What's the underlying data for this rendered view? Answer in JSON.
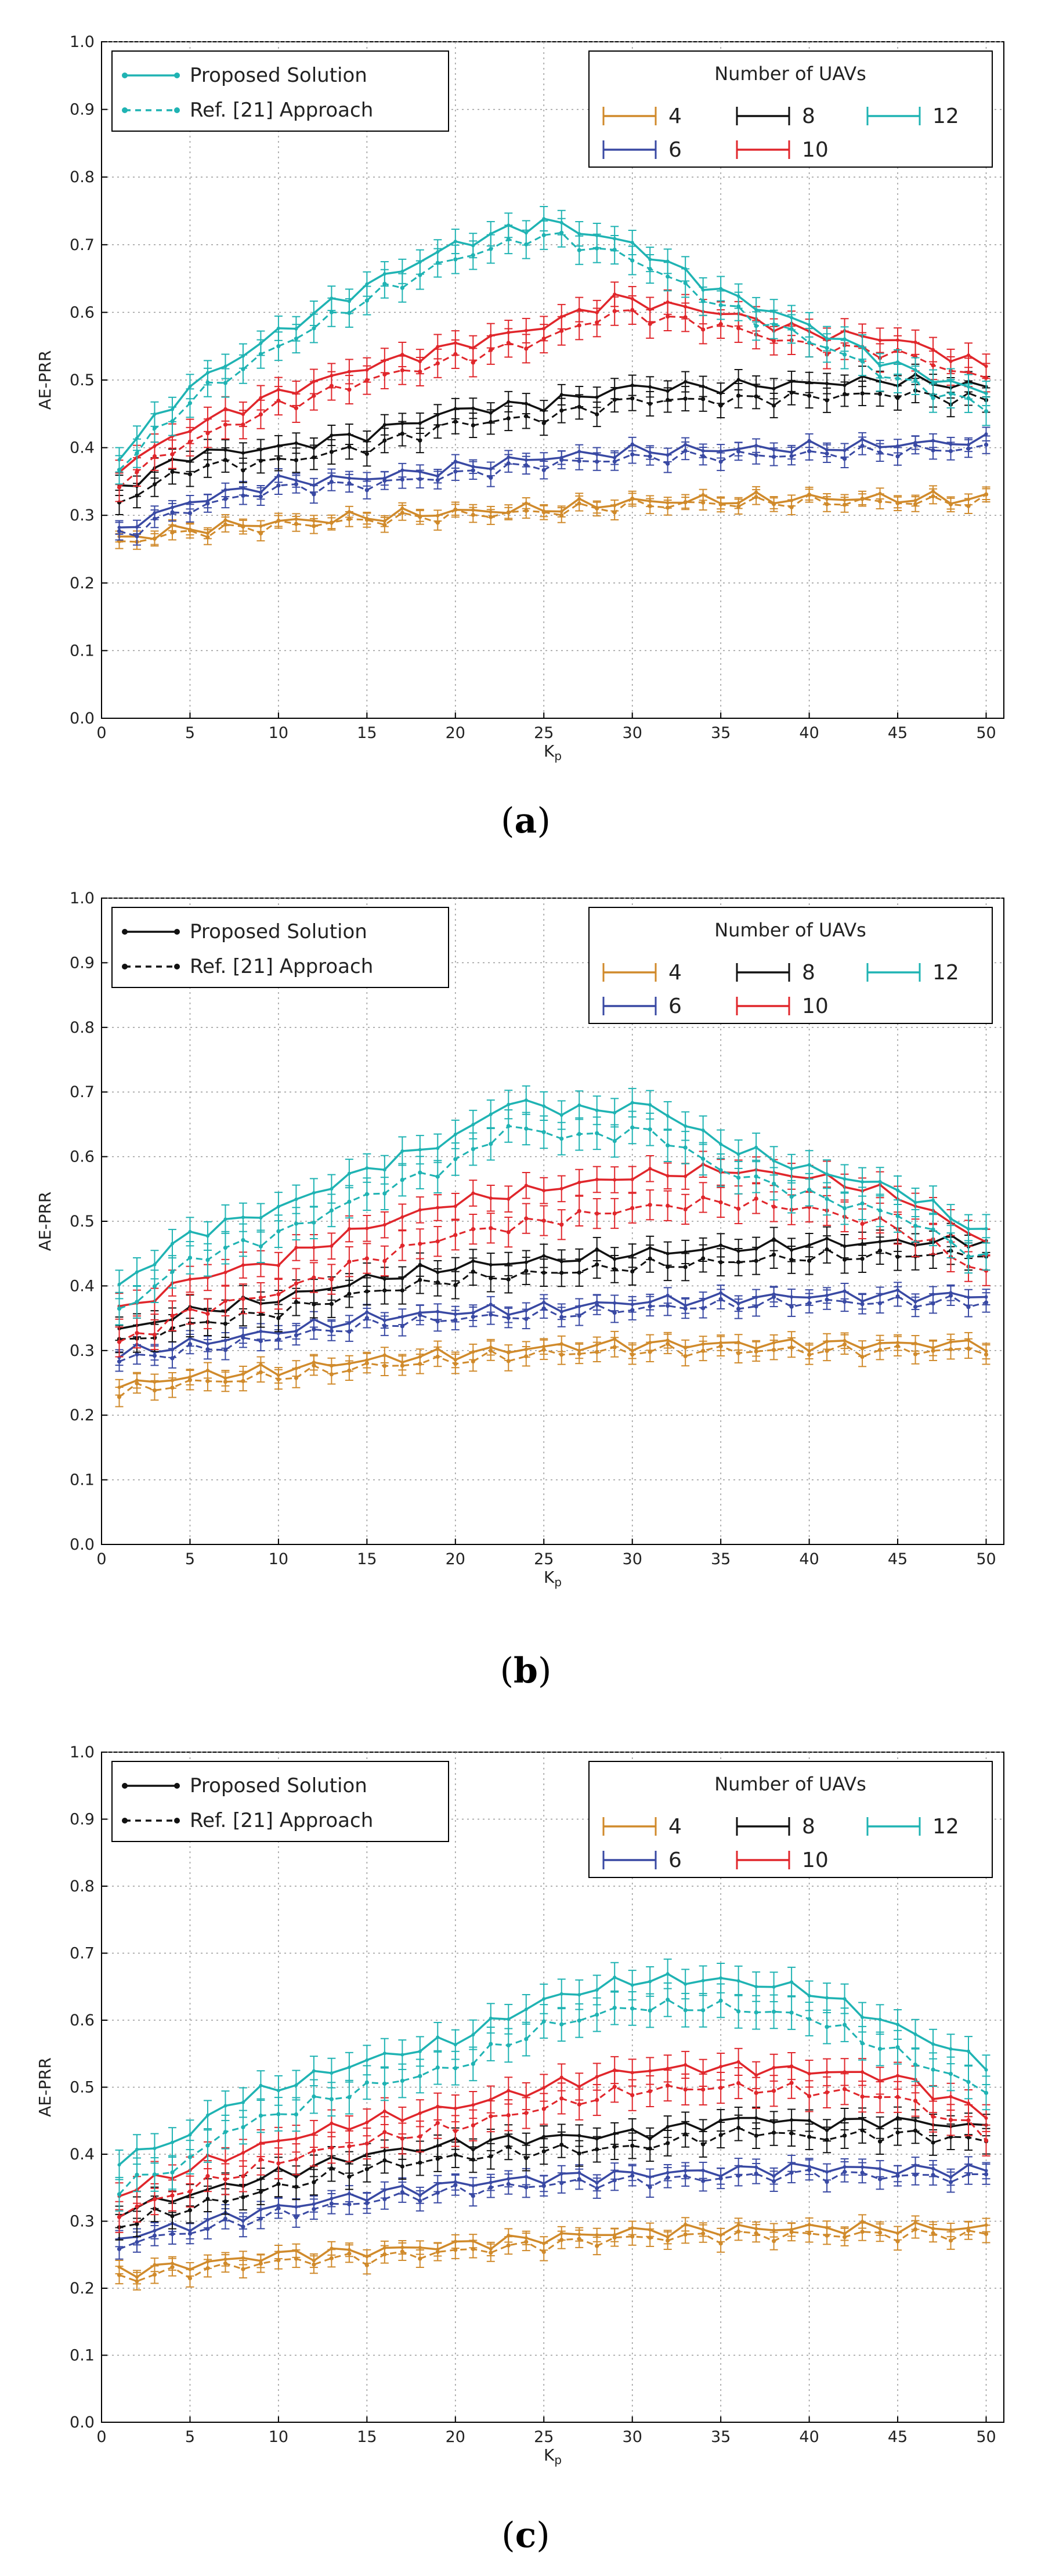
{
  "figure": {
    "panels": [
      "(a)",
      "(b)",
      "(c)"
    ]
  },
  "legend": {
    "proposed": "Proposed Solution",
    "reference": "Ref. [21] Approach",
    "uav_title": "Number of UAVs",
    "uav_counts": [
      "4",
      "6",
      "8",
      "10",
      "12"
    ]
  },
  "colors": {
    "4": "#d08a2b",
    "6": "#3949a3",
    "8": "#111111",
    "10": "#e0262b",
    "12": "#1fb3b3"
  },
  "chart_data": [
    {
      "type": "line",
      "panel": "(a)",
      "xlabel": "Kp",
      "ylabel": "AE-PRR",
      "xlim": [
        0,
        51
      ],
      "ylim": [
        0,
        1.0
      ],
      "xticks": [
        0,
        5,
        10,
        15,
        20,
        25,
        30,
        35,
        40,
        45,
        50
      ],
      "yticks": [
        0.0,
        0.1,
        0.2,
        0.3,
        0.4,
        0.5,
        0.6,
        0.7,
        0.8,
        0.9,
        1.0
      ],
      "grid": true,
      "legend_position": "top-left and top-right",
      "proposed_legend_color": "#1fb3b3",
      "series": [
        {
          "name": "4",
          "keypoints": [
            [
              1,
              0.265
            ],
            [
              5,
              0.28
            ],
            [
              10,
              0.29
            ],
            [
              20,
              0.305
            ],
            [
              25,
              0.31
            ],
            [
              30,
              0.32
            ],
            [
              40,
              0.325
            ],
            [
              50,
              0.325
            ]
          ],
          "ref_offset": -0.005,
          "err": 0.008
        },
        {
          "name": "6",
          "keypoints": [
            [
              1,
              0.28
            ],
            [
              5,
              0.32
            ],
            [
              10,
              0.35
            ],
            [
              15,
              0.355
            ],
            [
              20,
              0.37
            ],
            [
              25,
              0.385
            ],
            [
              30,
              0.395
            ],
            [
              40,
              0.4
            ],
            [
              50,
              0.41
            ]
          ],
          "ref_offset": -0.01,
          "err": 0.01
        },
        {
          "name": "8",
          "keypoints": [
            [
              1,
              0.34
            ],
            [
              5,
              0.39
            ],
            [
              10,
              0.4
            ],
            [
              15,
              0.42
            ],
            [
              20,
              0.455
            ],
            [
              25,
              0.465
            ],
            [
              30,
              0.49
            ],
            [
              35,
              0.49
            ],
            [
              40,
              0.495
            ],
            [
              45,
              0.5
            ],
            [
              50,
              0.49
            ]
          ],
          "ref_offset": -0.02,
          "err": 0.015
        },
        {
          "name": "10",
          "keypoints": [
            [
              1,
              0.37
            ],
            [
              5,
              0.43
            ],
            [
              10,
              0.48
            ],
            [
              15,
              0.52
            ],
            [
              20,
              0.55
            ],
            [
              25,
              0.58
            ],
            [
              29,
              0.62
            ],
            [
              35,
              0.6
            ],
            [
              40,
              0.57
            ],
            [
              45,
              0.56
            ],
            [
              50,
              0.52
            ]
          ],
          "ref_offset": -0.02,
          "err": 0.018
        },
        {
          "name": "12",
          "keypoints": [
            [
              1,
              0.39
            ],
            [
              5,
              0.49
            ],
            [
              10,
              0.57
            ],
            [
              15,
              0.64
            ],
            [
              20,
              0.7
            ],
            [
              25,
              0.735
            ],
            [
              30,
              0.7
            ],
            [
              35,
              0.63
            ],
            [
              40,
              0.58
            ],
            [
              45,
              0.52
            ],
            [
              50,
              0.48
            ]
          ],
          "ref_offset": -0.02,
          "err": 0.018
        }
      ]
    },
    {
      "type": "line",
      "panel": "(b)",
      "xlabel": "Kp",
      "ylabel": "AE-PRR",
      "xlim": [
        0,
        51
      ],
      "ylim": [
        0,
        1.0
      ],
      "xticks": [
        0,
        5,
        10,
        15,
        20,
        25,
        30,
        35,
        40,
        45,
        50
      ],
      "yticks": [
        0.0,
        0.1,
        0.2,
        0.3,
        0.4,
        0.5,
        0.6,
        0.7,
        0.8,
        0.9,
        1.0
      ],
      "grid": true,
      "legend_position": "top-left and top-right",
      "proposed_legend_color": "#111111",
      "series": [
        {
          "name": "4",
          "keypoints": [
            [
              1,
              0.245
            ],
            [
              5,
              0.26
            ],
            [
              10,
              0.27
            ],
            [
              15,
              0.285
            ],
            [
              20,
              0.295
            ],
            [
              25,
              0.305
            ],
            [
              30,
              0.31
            ],
            [
              40,
              0.31
            ],
            [
              50,
              0.31
            ]
          ],
          "ref_offset": -0.01,
          "err": 0.012
        },
        {
          "name": "6",
          "keypoints": [
            [
              1,
              0.295
            ],
            [
              5,
              0.31
            ],
            [
              10,
              0.33
            ],
            [
              15,
              0.35
            ],
            [
              20,
              0.36
            ],
            [
              25,
              0.365
            ],
            [
              30,
              0.375
            ],
            [
              40,
              0.385
            ],
            [
              50,
              0.385
            ]
          ],
          "ref_offset": -0.01,
          "err": 0.012
        },
        {
          "name": "8",
          "keypoints": [
            [
              1,
              0.33
            ],
            [
              5,
              0.36
            ],
            [
              10,
              0.38
            ],
            [
              15,
              0.41
            ],
            [
              20,
              0.43
            ],
            [
              25,
              0.44
            ],
            [
              30,
              0.45
            ],
            [
              40,
              0.465
            ],
            [
              50,
              0.47
            ]
          ],
          "ref_offset": -0.02,
          "err": 0.018
        },
        {
          "name": "10",
          "keypoints": [
            [
              1,
              0.36
            ],
            [
              5,
              0.41
            ],
            [
              10,
              0.44
            ],
            [
              15,
              0.49
            ],
            [
              20,
              0.53
            ],
            [
              25,
              0.55
            ],
            [
              30,
              0.57
            ],
            [
              35,
              0.58
            ],
            [
              40,
              0.57
            ],
            [
              45,
              0.54
            ],
            [
              50,
              0.47
            ]
          ],
          "ref_offset": -0.05,
          "err": 0.02
        },
        {
          "name": "12",
          "keypoints": [
            [
              1,
              0.4
            ],
            [
              5,
              0.48
            ],
            [
              10,
              0.52
            ],
            [
              15,
              0.58
            ],
            [
              20,
              0.63
            ],
            [
              23,
              0.685
            ],
            [
              27,
              0.67
            ],
            [
              31,
              0.68
            ],
            [
              35,
              0.62
            ],
            [
              40,
              0.58
            ],
            [
              45,
              0.55
            ],
            [
              50,
              0.48
            ]
          ],
          "ref_offset": -0.04,
          "err": 0.022
        }
      ]
    },
    {
      "type": "line",
      "panel": "(c)",
      "xlabel": "Kp",
      "ylabel": "AE-PRR",
      "xlim": [
        0,
        51
      ],
      "ylim": [
        0,
        1.0
      ],
      "xticks": [
        0,
        5,
        10,
        15,
        20,
        25,
        30,
        35,
        40,
        45,
        50
      ],
      "yticks": [
        0.0,
        0.1,
        0.2,
        0.3,
        0.4,
        0.5,
        0.6,
        0.7,
        0.8,
        0.9,
        1.0
      ],
      "grid": true,
      "legend_position": "top-left and top-right",
      "proposed_legend_color": "#111111",
      "series": [
        {
          "name": "4",
          "keypoints": [
            [
              1,
              0.225
            ],
            [
              5,
              0.235
            ],
            [
              10,
              0.25
            ],
            [
              15,
              0.255
            ],
            [
              20,
              0.265
            ],
            [
              25,
              0.275
            ],
            [
              30,
              0.285
            ],
            [
              40,
              0.29
            ],
            [
              50,
              0.29
            ]
          ],
          "ref_offset": -0.01,
          "err": 0.01
        },
        {
          "name": "6",
          "keypoints": [
            [
              1,
              0.275
            ],
            [
              5,
              0.295
            ],
            [
              10,
              0.32
            ],
            [
              15,
              0.34
            ],
            [
              20,
              0.355
            ],
            [
              25,
              0.365
            ],
            [
              30,
              0.37
            ],
            [
              40,
              0.38
            ],
            [
              50,
              0.375
            ]
          ],
          "ref_offset": -0.01,
          "err": 0.012
        },
        {
          "name": "8",
          "keypoints": [
            [
              1,
              0.315
            ],
            [
              5,
              0.34
            ],
            [
              10,
              0.37
            ],
            [
              15,
              0.4
            ],
            [
              20,
              0.415
            ],
            [
              25,
              0.425
            ],
            [
              30,
              0.43
            ],
            [
              37,
              0.455
            ],
            [
              40,
              0.445
            ],
            [
              45,
              0.45
            ],
            [
              50,
              0.44
            ]
          ],
          "ref_offset": -0.02,
          "err": 0.016
        },
        {
          "name": "10",
          "keypoints": [
            [
              1,
              0.34
            ],
            [
              5,
              0.38
            ],
            [
              10,
              0.42
            ],
            [
              15,
              0.45
            ],
            [
              20,
              0.47
            ],
            [
              25,
              0.5
            ],
            [
              30,
              0.525
            ],
            [
              35,
              0.53
            ],
            [
              40,
              0.525
            ],
            [
              45,
              0.515
            ],
            [
              50,
              0.46
            ]
          ],
          "ref_offset": -0.03,
          "err": 0.02
        },
        {
          "name": "12",
          "keypoints": [
            [
              1,
              0.39
            ],
            [
              5,
              0.43
            ],
            [
              7,
              0.475
            ],
            [
              10,
              0.5
            ],
            [
              15,
              0.54
            ],
            [
              20,
              0.57
            ],
            [
              25,
              0.63
            ],
            [
              30,
              0.66
            ],
            [
              35,
              0.66
            ],
            [
              40,
              0.645
            ],
            [
              45,
              0.59
            ],
            [
              50,
              0.535
            ]
          ],
          "ref_offset": -0.04,
          "err": 0.022
        }
      ]
    }
  ]
}
